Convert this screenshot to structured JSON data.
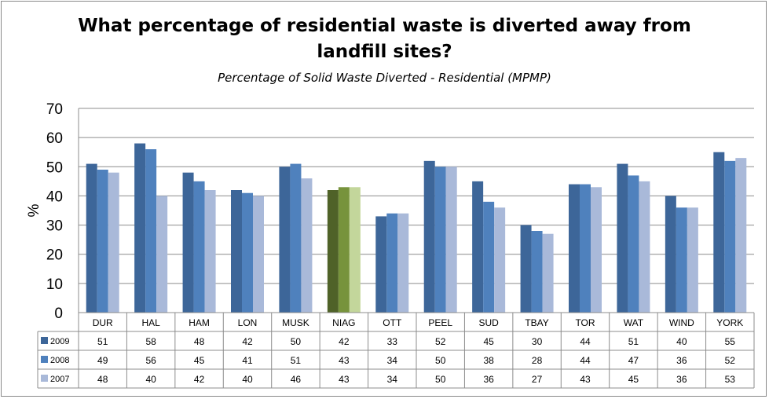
{
  "chart_data": {
    "type": "bar",
    "title": "What percentage of residential waste is diverted away from landfill sites?",
    "title_lines": [
      "What percentage of residential waste is diverted away from",
      "landfill sites?"
    ],
    "subtitle": "Percentage of Solid Waste Diverted - Residential (MPMP)",
    "ylabel": "%",
    "ylim": [
      0,
      70
    ],
    "yticks": [
      0,
      10,
      20,
      30,
      40,
      50,
      60,
      70
    ],
    "grid": true,
    "legend": "data-table",
    "categories": [
      "DUR",
      "HAL",
      "HAM",
      "LON",
      "MUSK",
      "NIAG",
      "OTT",
      "PEEL",
      "SUD",
      "TBAY",
      "TOR",
      "WAT",
      "WIND",
      "YORK"
    ],
    "series": [
      {
        "name": "2009",
        "color": "#3d6699",
        "values": [
          51,
          58,
          48,
          42,
          50,
          42,
          33,
          52,
          45,
          30,
          44,
          51,
          40,
          55
        ]
      },
      {
        "name": "2008",
        "color": "#4f81bd",
        "values": [
          49,
          56,
          45,
          41,
          51,
          43,
          34,
          50,
          38,
          28,
          44,
          47,
          36,
          52
        ]
      },
      {
        "name": "2007",
        "color": "#a9b9d9",
        "values": [
          48,
          40,
          42,
          40,
          46,
          43,
          34,
          50,
          36,
          27,
          43,
          45,
          36,
          53
        ]
      }
    ],
    "highlight": {
      "category": "NIAG",
      "colors": [
        "#4f6228",
        "#77933c",
        "#c3d69b"
      ]
    }
  }
}
